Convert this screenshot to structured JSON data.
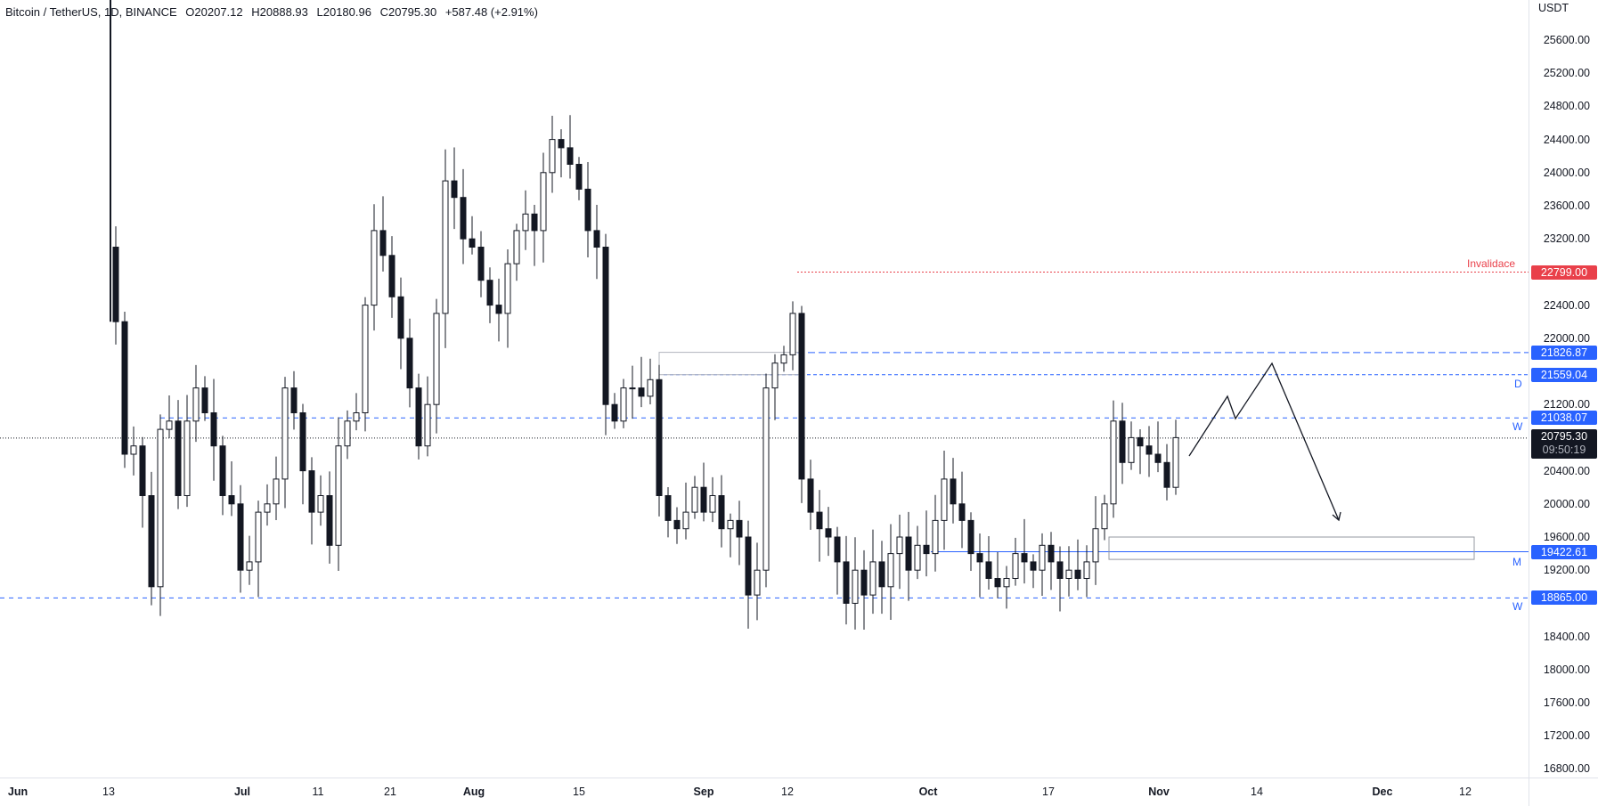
{
  "legend": {
    "symbol": "Bitcoin / TetherUS, 1D, BINANCE",
    "open": "O20207.12",
    "high": "H20888.93",
    "low": "L20180.96",
    "close": "C20795.30",
    "change": "+587.48 (+2.91%)"
  },
  "price_axis": {
    "currency": "USDT",
    "ticks": [
      "25600.00",
      "25200.00",
      "24800.00",
      "24400.00",
      "24000.00",
      "23600.00",
      "23200.00",
      "22400.00",
      "22000.00",
      "21200.00",
      "20400.00",
      "20000.00",
      "19600.00",
      "19200.00",
      "18400.00",
      "18000.00",
      "17600.00",
      "17200.00",
      "16800.00"
    ]
  },
  "price_labels": {
    "invalidace": "22799.00",
    "level_1": "21826.87",
    "level_2": "21559.04",
    "level_3": "21038.07",
    "current_price": "20795.30",
    "countdown": "09:50:19",
    "level_4": "19422.61",
    "level_5": "18865.00"
  },
  "annotations": {
    "invalidace": "Invalidace",
    "d": "D",
    "w1": "W",
    "m": "M",
    "w2": "W"
  },
  "time_axis": {
    "labels": [
      {
        "text": "Jun",
        "bold": true
      },
      {
        "text": "13",
        "bold": false
      },
      {
        "text": "Jul",
        "bold": true
      },
      {
        "text": "11",
        "bold": false
      },
      {
        "text": "21",
        "bold": false
      },
      {
        "text": "Aug",
        "bold": true
      },
      {
        "text": "15",
        "bold": false
      },
      {
        "text": "Sep",
        "bold": true
      },
      {
        "text": "12",
        "bold": false
      },
      {
        "text": "Oct",
        "bold": true
      },
      {
        "text": "17",
        "bold": false
      },
      {
        "text": "Nov",
        "bold": true
      },
      {
        "text": "14",
        "bold": false
      },
      {
        "text": "Dec",
        "bold": true
      },
      {
        "text": "12",
        "bold": false
      }
    ]
  },
  "colors": {
    "up_candle": "#ffffff",
    "down_candle": "#131722",
    "wick": "#131722",
    "level_blue": "#2962ff",
    "invalidation_red": "#e9404a",
    "current_price_line": "#131722"
  }
}
